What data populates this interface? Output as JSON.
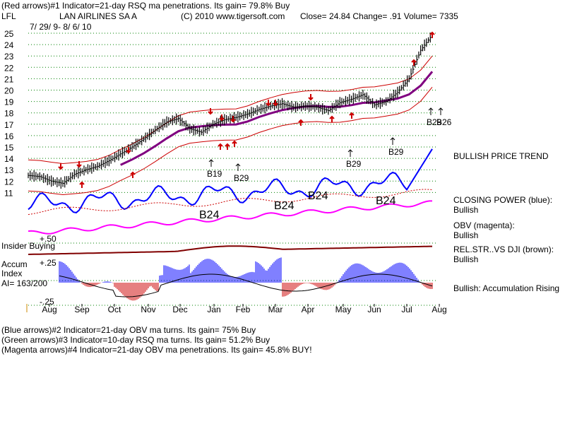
{
  "header": {
    "line1": "(Red arrows)#1 Indicator=21-day RSQ ma penetrations. Its gain= 79.8% Buy",
    "symbol": "LFL",
    "company": "LAN AIRLINES SA A",
    "copyright": "(C) 2010 www.tigersoft.com",
    "quote": "Close=  24.84  Change= .91 Volume= 7335",
    "date_range": "7/ 29/ 9- 8/ 6/ 10"
  },
  "footer": {
    "line1": "(Blue arrows)#2 Indicator=21-day OBV ma turns. Its gain= 75% Buy",
    "line2": "(Green arrows)#3 Indicator=10-day RSQ ma turns. Its gain= 51.2% Buy",
    "line3": "(Magenta arrows)#4 Indicator=21-day OBV ma penetrations. Its gain= 45.8% BUY!"
  },
  "right_panel": {
    "price_trend": "BULLISH PRICE TREND",
    "closing_power_label": "CLOSING POWER (blue):",
    "closing_power_value": "Bullish",
    "obv_label": "OBV (magenta):",
    "obv_value": "Bullish",
    "relstr_label": "REL.STR..VS DJI (brown):",
    "relstr_value": "Bullish",
    "accum_status": "Bullish: Accumulation Rising"
  },
  "lower_panel": {
    "insider_label": "Insider Buying",
    "accum_line1": "Accum",
    "accum_line2": "Index",
    "ai_value": "AI= 163/200",
    "tick_plus50": "+.50",
    "tick_plus25": "+.25",
    "tick_minus25": "-.25"
  },
  "colors": {
    "price_bars": "#000000",
    "bands": "#cc0000",
    "moving_average": "#800080",
    "closing_power": "#0000ff",
    "obv": "#ff00ff",
    "rel_str": "#800000",
    "accum_positive": "#0000ff",
    "accum_negative": "#cc0000",
    "grid": "#008000"
  },
  "chart_data": {
    "type": "line",
    "title": "LAN AIRLINES SA A",
    "xlabel": "",
    "ylabel": "",
    "ylim": [
      10,
      25
    ],
    "grid": true,
    "y_ticks": [
      11,
      12,
      13,
      14,
      15,
      16,
      17,
      18,
      19,
      20,
      21,
      22,
      23,
      24,
      25
    ],
    "x_ticks": [
      "Aug",
      "Sep",
      "Oct",
      "Nov",
      "Dec",
      "Jan",
      "Feb",
      "Mar",
      "Apr",
      "May",
      "Jun",
      "Jul",
      "Aug"
    ],
    "series": [
      {
        "values": [
          12.5,
          12.4,
          12.0,
          11.8,
          12.6,
          13.0,
          13.3,
          13.8,
          14.4,
          15.0,
          15.7,
          16.5,
          17.2,
          17.5,
          16.6,
          16.3,
          17.0,
          17.4,
          17.6,
          17.9,
          18.3,
          18.6,
          18.8,
          18.5,
          18.6,
          18.5,
          18.2,
          18.9,
          19.2,
          19.6,
          18.7,
          19.0,
          19.8,
          21.0,
          23.5,
          24.84
        ]
      }
    ],
    "annotations": [
      "B19",
      "B29",
      "B29",
      "B29",
      "B29",
      "B26",
      "B24",
      "B24",
      "B24",
      "B24"
    ]
  }
}
